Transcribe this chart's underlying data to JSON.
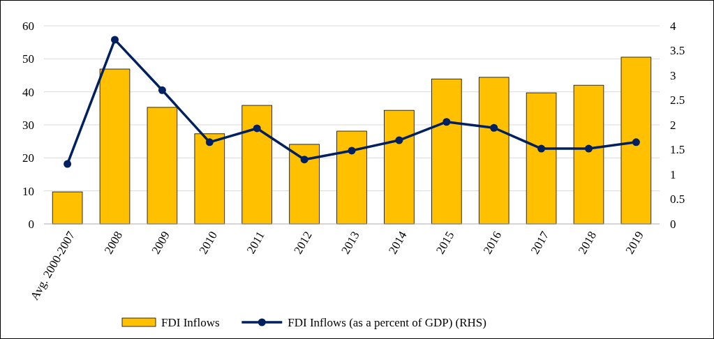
{
  "chart_data": {
    "type": "bar",
    "categories": [
      "Avg. 2000-2007",
      "2008",
      "2009",
      "2010",
      "2011",
      "2012",
      "2013",
      "2014",
      "2015",
      "2016",
      "2017",
      "2018",
      "2019"
    ],
    "series": [
      {
        "name": "FDI Inflows",
        "color": "#ffc000",
        "values": [
          9.7,
          46.9,
          35.3,
          27.3,
          35.9,
          24.1,
          28.1,
          34.4,
          43.9,
          44.4,
          39.7,
          42.0,
          50.5
        ]
      },
      {
        "name": "FDI Inflows (as a percent of GDP) (RHS)",
        "type": "line",
        "axis": "y2",
        "color": "#002060",
        "marker": "circle",
        "values": [
          1.21,
          3.72,
          2.7,
          1.65,
          1.93,
          1.3,
          1.48,
          1.69,
          2.06,
          1.94,
          1.52,
          1.52,
          1.65
        ]
      }
    ],
    "ylim": [
      0,
      60
    ],
    "yticks": [
      0,
      10,
      20,
      30,
      40,
      50,
      60
    ],
    "y2lim": [
      0,
      4
    ],
    "y2ticks": [
      0,
      0.5,
      1,
      1.5,
      2,
      2.5,
      3,
      3.5,
      4
    ],
    "grid": "y",
    "legend": "bottom"
  }
}
